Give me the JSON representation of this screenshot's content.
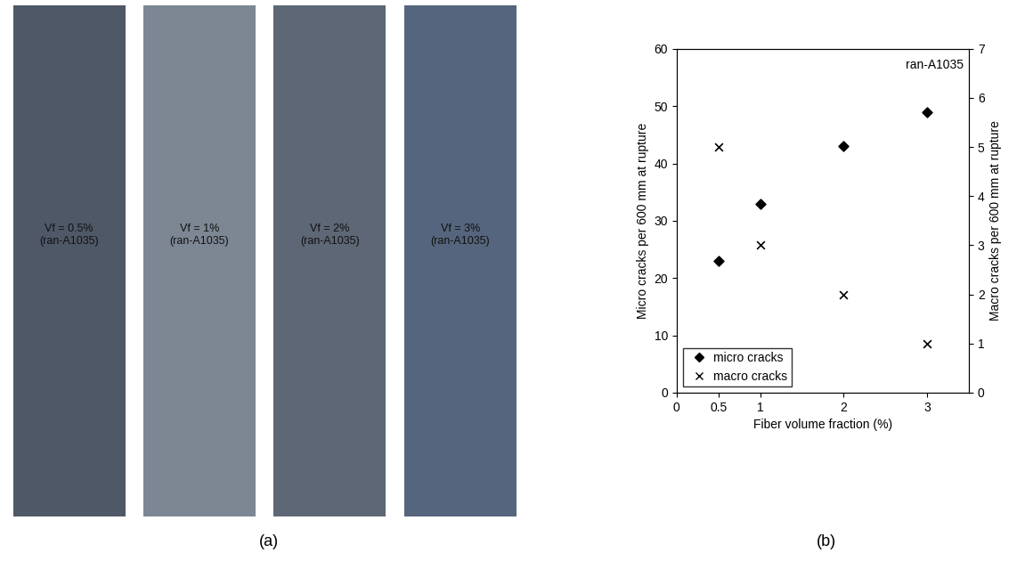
{
  "panel_a": {
    "label": "(a)",
    "specimens": [
      "Vf = 0.5%\n(ran-A1035)",
      "Vf = 1%\n(ran-A1035)",
      "Vf = 2%\n(ran-A1035)",
      "Vf = 3%\n(ran-A1035)"
    ]
  },
  "chart_data": {
    "type": "scatter",
    "panel_label": "(b)",
    "annotation": "ran-A1035",
    "x_label": "Fiber volume fraction (%)",
    "y_label": "Micro cracks per 600 mm at rupture",
    "y2_label": "Macro cracks per 600 mm at rupture",
    "x": [
      0.5,
      1,
      2,
      3
    ],
    "series": [
      {
        "name": "micro cracks",
        "color": "#000000",
        "marker": "diamond",
        "values": [
          23,
          33,
          43,
          49
        ]
      },
      {
        "name": "macro cracks",
        "color": "#000000",
        "marker": "x",
        "axis": "y2",
        "values": [
          5,
          3,
          2,
          1
        ]
      }
    ],
    "xlim": [
      0,
      3.5
    ],
    "xticks": [
      0,
      0.5,
      1,
      2,
      3
    ],
    "ylim": [
      0,
      60
    ],
    "yticks": [
      0,
      10,
      20,
      30,
      40,
      50,
      60
    ],
    "y2lim": [
      0,
      7
    ],
    "y2ticks": [
      0,
      1,
      2,
      3,
      4,
      5,
      6,
      7
    ],
    "legend": "lower left",
    "grid": false
  }
}
